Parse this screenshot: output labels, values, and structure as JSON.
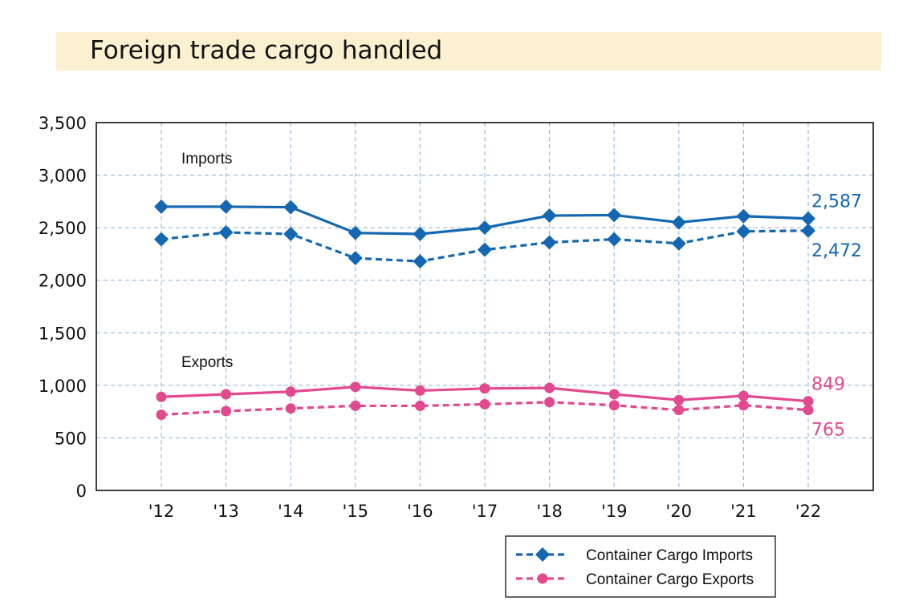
{
  "page": {
    "title": "Foreign trade cargo handled"
  },
  "chart_data": {
    "type": "line",
    "title": "Foreign trade cargo handled",
    "xlabel": "",
    "ylabel": "",
    "categories": [
      "'12",
      "'13",
      "'14",
      "'15",
      "'16",
      "'17",
      "'18",
      "'19",
      "'20",
      "'21",
      "'22"
    ],
    "ylim": [
      0,
      3500
    ],
    "yticks": [
      "0",
      "500",
      "1,000",
      "1,500",
      "2,000",
      "2,500",
      "3,000",
      "3,500"
    ],
    "grid": true,
    "colors": {
      "imports": "#1467b1",
      "exports": "#e2498f"
    },
    "group_labels": {
      "imports": "Imports",
      "exports": "Exports"
    },
    "series": [
      {
        "group": "imports",
        "style": "solid",
        "marker": "diamond",
        "values": [
          2700,
          2700,
          2695,
          2450,
          2440,
          2500,
          2615,
          2620,
          2550,
          2610,
          2587
        ],
        "end_label": "2,587"
      },
      {
        "group": "imports",
        "style": "dashed",
        "marker": "diamond",
        "name": "Container Cargo Imports",
        "values": [
          2390,
          2455,
          2440,
          2210,
          2180,
          2290,
          2360,
          2390,
          2350,
          2465,
          2472
        ],
        "end_label": "2,472"
      },
      {
        "group": "exports",
        "style": "solid",
        "marker": "circle",
        "values": [
          890,
          915,
          940,
          985,
          950,
          970,
          975,
          915,
          860,
          900,
          849
        ],
        "end_label": "849"
      },
      {
        "group": "exports",
        "style": "dashed",
        "marker": "circle",
        "name": "Container Cargo Exports",
        "values": [
          720,
          755,
          780,
          805,
          805,
          820,
          840,
          810,
          765,
          810,
          765
        ],
        "end_label": "765"
      }
    ],
    "legend": {
      "placement": "bottom-right",
      "items": [
        {
          "label": "Container Cargo Imports",
          "group": "imports"
        },
        {
          "label": "Container Cargo Exports",
          "group": "exports"
        }
      ]
    }
  }
}
